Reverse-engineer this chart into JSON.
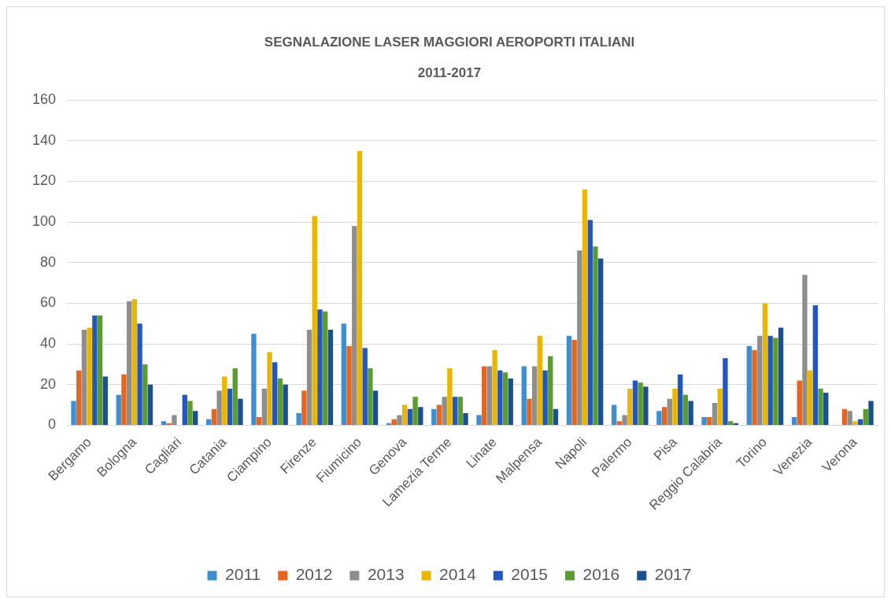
{
  "chart_data": {
    "type": "bar",
    "title": "SEGNALAZIONE LASER MAGGIORI AEROPORTI ITALIANI\n2011-2017",
    "categories": [
      "Bergamo",
      "Bologna",
      "Cagliari",
      "Catania",
      "Ciampino",
      "Firenze",
      "Fiumicino",
      "Genova",
      "Lamezia Terme",
      "Linate",
      "Malpensa",
      "Napoli",
      "Palermo",
      "Pisa",
      "Reggio Calabria",
      "Torino",
      "Venezia",
      "Verona"
    ],
    "series": [
      {
        "name": "2011",
        "color": "#3d8fd1",
        "values": [
          12,
          15,
          2,
          3,
          45,
          6,
          50,
          1,
          8,
          5,
          29,
          44,
          10,
          7,
          4,
          39,
          4,
          0
        ]
      },
      {
        "name": "2012",
        "color": "#e4661f",
        "values": [
          27,
          25,
          1,
          8,
          4,
          17,
          39,
          3,
          10,
          29,
          13,
          42,
          2,
          9,
          4,
          37,
          22,
          8
        ]
      },
      {
        "name": "2013",
        "color": "#8e8e8e",
        "values": [
          47,
          61,
          5,
          17,
          18,
          47,
          98,
          5,
          14,
          29,
          29,
          86,
          5,
          13,
          11,
          44,
          74,
          7
        ]
      },
      {
        "name": "2014",
        "color": "#eab700",
        "values": [
          48,
          62,
          0,
          24,
          36,
          103,
          135,
          10,
          28,
          37,
          44,
          116,
          18,
          18,
          18,
          60,
          27,
          2
        ]
      },
      {
        "name": "2015",
        "color": "#2456c0",
        "values": [
          54,
          50,
          15,
          18,
          31,
          57,
          38,
          8,
          14,
          27,
          27,
          101,
          22,
          25,
          33,
          44,
          59,
          3
        ]
      },
      {
        "name": "2016",
        "color": "#5b9c31",
        "values": [
          54,
          30,
          12,
          28,
          23,
          56,
          28,
          14,
          14,
          26,
          34,
          88,
          21,
          15,
          2,
          43,
          18,
          8
        ]
      },
      {
        "name": "2017",
        "color": "#1c4f8f",
        "values": [
          24,
          20,
          7,
          13,
          20,
          47,
          17,
          9,
          6,
          23,
          8,
          82,
          19,
          12,
          1,
          48,
          16,
          12
        ]
      }
    ],
    "ylim": [
      0,
      160
    ],
    "yticks": [
      0,
      20,
      40,
      60,
      80,
      100,
      120,
      140,
      160
    ],
    "grid": "y",
    "legend": "bottom"
  }
}
